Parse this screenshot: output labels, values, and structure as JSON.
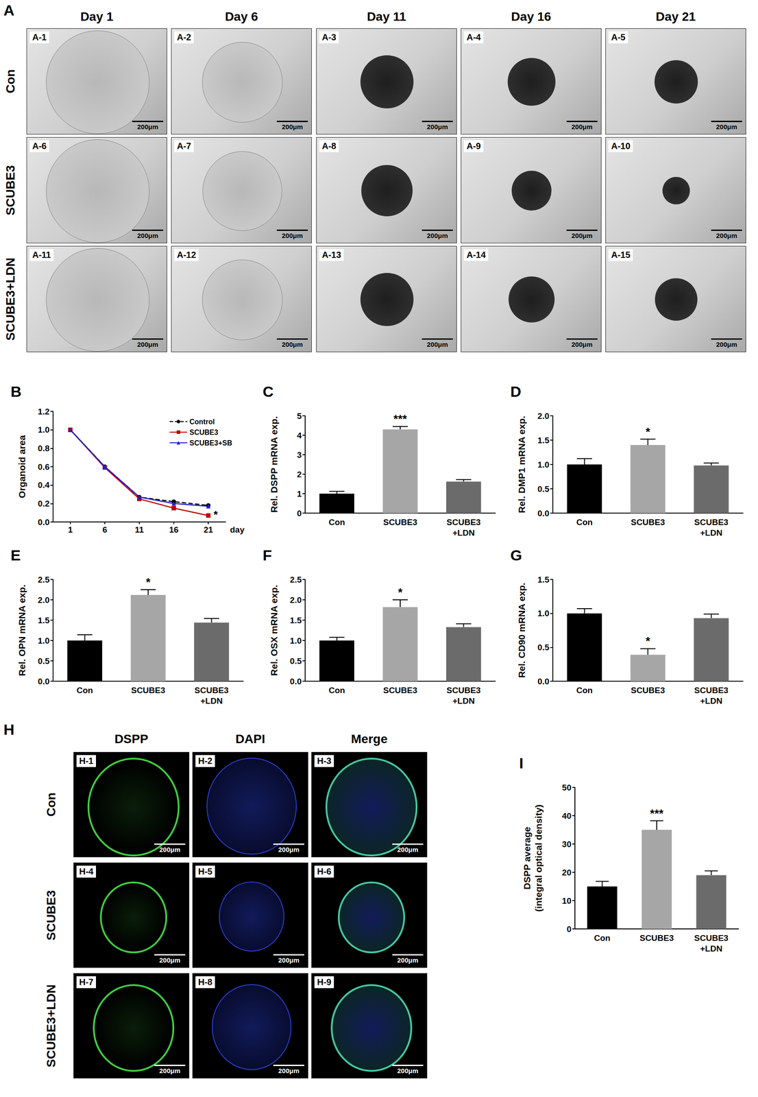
{
  "panel_A": {
    "panel": "A",
    "columns": [
      "Day 1",
      "Day 6",
      "Day 11",
      "Day 16",
      "Day 21"
    ],
    "rows": [
      "Con",
      "SCUBE3",
      "SCUBE3+LDN"
    ],
    "tiles": [
      [
        "A-1",
        "A-2",
        "A-3",
        "A-4",
        "A-5"
      ],
      [
        "A-6",
        "A-7",
        "A-8",
        "A-9",
        "A-10"
      ],
      [
        "A-11",
        "A-12",
        "A-13",
        "A-14",
        "A-15"
      ]
    ],
    "scale_bar": "200μm"
  },
  "chart_data": [
    {
      "panel": "B",
      "type": "line",
      "x": [
        "1",
        "6",
        "11",
        "16",
        "21"
      ],
      "xlabel": "day",
      "ylabel": "Organoid area",
      "ylim": [
        0,
        1.2
      ],
      "yticks": [
        {
          "value": 0,
          "label": "0.0"
        },
        {
          "value": 0.2,
          "label": "0.2"
        },
        {
          "value": 0.4,
          "label": "0.4"
        },
        {
          "value": 0.6,
          "label": "0.6"
        },
        {
          "value": 0.8,
          "label": "0.8"
        },
        {
          "value": 1,
          "label": "1.0"
        },
        {
          "value": 1.2,
          "label": "1.2"
        }
      ],
      "grid": false,
      "legend": "upper right",
      "series": [
        {
          "name": "Control",
          "color": "#000000",
          "marker": "circle",
          "line_style": "dashed",
          "values": [
            1.0,
            0.6,
            0.27,
            0.22,
            0.18
          ]
        },
        {
          "name": "SCUBE3",
          "color": "#c00000",
          "marker": "square",
          "line_style": "solid",
          "values": [
            1.0,
            0.59,
            0.25,
            0.15,
            0.07
          ]
        },
        {
          "name": "SCUBE3+SB",
          "color": "#1f1fcc",
          "marker": "triangle",
          "line_style": "solid",
          "values": [
            1.0,
            0.6,
            0.27,
            0.2,
            0.17
          ]
        }
      ],
      "annotations": [
        {
          "x": "21",
          "text": "*"
        }
      ]
    },
    {
      "panel": "C",
      "type": "bar",
      "categories": [
        "Con",
        "SCUBE3",
        "SCUBE3\n+LDN"
      ],
      "ylabel": "Rel. DSPP mRNA exp.",
      "values": [
        1.0,
        4.3,
        1.62
      ],
      "errors": [
        0.12,
        0.15,
        0.1
      ],
      "colors": [
        "#000000",
        "#a6a6a6",
        "#6b6b6b"
      ],
      "ylim": [
        0,
        5
      ],
      "yticks": [
        0,
        1,
        2,
        3,
        4,
        5
      ],
      "grid": false,
      "annotations": [
        {
          "category": "SCUBE3",
          "text": "***"
        }
      ]
    },
    {
      "panel": "D",
      "type": "bar",
      "categories": [
        "Con",
        "SCUBE3",
        "SCUBE3\n+LDN"
      ],
      "ylabel": "Rel. DMP1 mRNA exp.",
      "values": [
        1.0,
        1.4,
        0.98
      ],
      "errors": [
        0.12,
        0.12,
        0.05
      ],
      "colors": [
        "#000000",
        "#a6a6a6",
        "#6b6b6b"
      ],
      "ylim": [
        0,
        2
      ],
      "yticks": [
        {
          "value": 0,
          "label": "0.0"
        },
        {
          "value": 0.5,
          "label": "0.5"
        },
        {
          "value": 1,
          "label": "1.0"
        },
        {
          "value": 1.5,
          "label": "1.5"
        },
        {
          "value": 2,
          "label": "2.0"
        }
      ],
      "grid": false,
      "annotations": [
        {
          "category": "SCUBE3",
          "text": "*"
        }
      ]
    },
    {
      "panel": "E",
      "type": "bar",
      "categories": [
        "Con",
        "SCUBE3",
        "SCUBE3\n+LDN"
      ],
      "ylabel": "Rel. OPN mRNA exp.",
      "values": [
        1.0,
        2.12,
        1.44
      ],
      "errors": [
        0.14,
        0.13,
        0.1
      ],
      "colors": [
        "#000000",
        "#a6a6a6",
        "#6b6b6b"
      ],
      "ylim": [
        0,
        2.5
      ],
      "yticks": [
        {
          "value": 0,
          "label": "0.0"
        },
        {
          "value": 0.5,
          "label": "0.5"
        },
        {
          "value": 1,
          "label": "1.0"
        },
        {
          "value": 1.5,
          "label": "1.5"
        },
        {
          "value": 2,
          "label": "2.0"
        },
        {
          "value": 2.5,
          "label": "2.5"
        }
      ],
      "grid": false,
      "annotations": [
        {
          "category": "SCUBE3",
          "text": "*"
        }
      ]
    },
    {
      "panel": "F",
      "type": "bar",
      "categories": [
        "Con",
        "SCUBE3",
        "SCUBE3\n+LDN"
      ],
      "ylabel": "Rel. OSX mRNA exp.",
      "values": [
        1.0,
        1.82,
        1.33
      ],
      "errors": [
        0.08,
        0.18,
        0.08
      ],
      "colors": [
        "#000000",
        "#a6a6a6",
        "#6b6b6b"
      ],
      "ylim": [
        0,
        2.5
      ],
      "yticks": [
        {
          "value": 0,
          "label": "0.0"
        },
        {
          "value": 0.5,
          "label": "0.5"
        },
        {
          "value": 1,
          "label": "1.0"
        },
        {
          "value": 1.5,
          "label": "1.5"
        },
        {
          "value": 2,
          "label": "2.0"
        },
        {
          "value": 2.5,
          "label": "2.5"
        }
      ],
      "grid": false,
      "annotations": [
        {
          "category": "SCUBE3",
          "text": "*"
        }
      ]
    },
    {
      "panel": "G",
      "type": "bar",
      "categories": [
        "Con",
        "SCUBE3",
        "SCUBE3\n+LDN"
      ],
      "ylabel": "Rel. CD90 mRNA exp.",
      "values": [
        1.0,
        0.39,
        0.93
      ],
      "errors": [
        0.07,
        0.09,
        0.06
      ],
      "colors": [
        "#000000",
        "#a6a6a6",
        "#6b6b6b"
      ],
      "ylim": [
        0,
        1.5
      ],
      "yticks": [
        {
          "value": 0,
          "label": "0.0"
        },
        {
          "value": 0.5,
          "label": "0.5"
        },
        {
          "value": 1,
          "label": "1.0"
        },
        {
          "value": 1.5,
          "label": "1.5"
        }
      ],
      "grid": false,
      "annotations": [
        {
          "category": "SCUBE3",
          "text": "*"
        }
      ]
    },
    {
      "panel": "I",
      "type": "bar",
      "categories": [
        "Con",
        "SCUBE3",
        "SCUBE3\n+LDN"
      ],
      "ylabel": "DSPP average\n(integral optical density)",
      "values": [
        15,
        35,
        19
      ],
      "errors": [
        1.8,
        3.2,
        1.5
      ],
      "colors": [
        "#000000",
        "#a6a6a6",
        "#6b6b6b"
      ],
      "ylim": [
        0,
        50
      ],
      "yticks": [
        0,
        10,
        20,
        30,
        40,
        50
      ],
      "grid": false,
      "annotations": [
        {
          "category": "SCUBE3",
          "text": "***"
        }
      ]
    }
  ],
  "panel_H": {
    "panel": "H",
    "columns": [
      "DSPP",
      "DAPI",
      "Merge"
    ],
    "rows": [
      "Con",
      "SCUBE3",
      "SCUBE3+LDN"
    ],
    "tiles": [
      [
        "H-1",
        "H-2",
        "H-3"
      ],
      [
        "H-4",
        "H-5",
        "H-6"
      ],
      [
        "H-7",
        "H-8",
        "H-9"
      ]
    ],
    "scale_bar": "200μm"
  }
}
